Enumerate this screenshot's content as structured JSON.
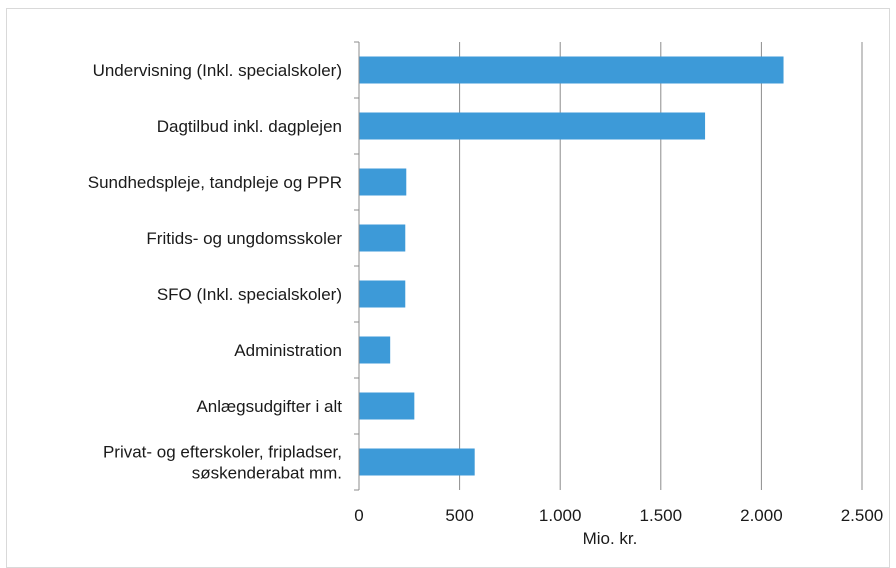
{
  "chart_data": {
    "type": "bar",
    "orientation": "horizontal",
    "title": "",
    "xlabel": "Mio. kr.",
    "ylabel": "",
    "categories": [
      "Undervisning (Inkl. specialskoler)",
      "Dagtilbud inkl. dagplejen",
      "Sundhedspleje, tandpleje og PPR",
      "Fritids- og ungdomsskoler",
      "SFO (Inkl. specialskoler)",
      "Administration",
      "Anlægsudgifter i alt",
      "Privat- og efterskoler, fripladser, søskenderabat mm."
    ],
    "category_lines": [
      [
        "Undervisning (Inkl. specialskoler)"
      ],
      [
        "Dagtilbud inkl. dagplejen"
      ],
      [
        "Sundhedspleje, tandpleje og PPR"
      ],
      [
        "Fritids- og ungdomsskoler"
      ],
      [
        "SFO (Inkl. specialskoler)"
      ],
      [
        "Administration"
      ],
      [
        "Anlægsudgifter i alt"
      ],
      [
        "Privat- og efterskoler, fripladser,",
        "søskenderabat mm."
      ]
    ],
    "values": [
      2110,
      1720,
      235,
      230,
      230,
      155,
      275,
      575
    ],
    "xlim": [
      0,
      2500
    ],
    "xticks": [
      0,
      500,
      1000,
      1500,
      2000,
      2500
    ],
    "xtick_labels": [
      "0",
      "500",
      "1.000",
      "1.500",
      "2.000",
      "2.500"
    ],
    "grid": "vertical",
    "legend": "none",
    "bar_color": "#3d9ad8",
    "grid_color": "#8c8c8c",
    "axis_color": "#8c8c8c"
  }
}
